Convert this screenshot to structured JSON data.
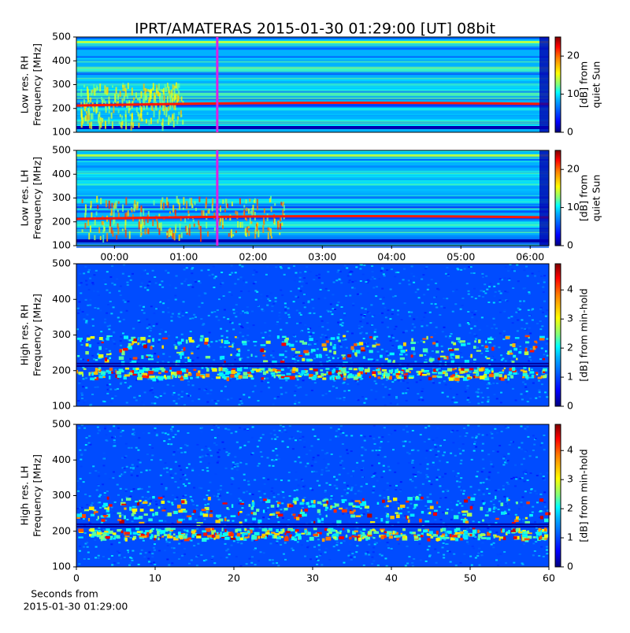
{
  "chart_data": [
    {
      "type": "heatmap",
      "title": "IPRT/AMATERAS 2015-01-30 01:29:00 [UT]   08bit",
      "ylabel": [
        "Low res. RH",
        "Frequency [MHz]"
      ],
      "ylim": [
        100,
        500
      ],
      "yticks": [
        100,
        200,
        300,
        400,
        500
      ],
      "xlim": [
        -0.55,
        6.27
      ],
      "marker_x": 1.483,
      "marker_color": "#e020e0",
      "colorbar_label": [
        "[dB] from",
        "quiet Sun"
      ],
      "clim": [
        0,
        25
      ],
      "cticks": [
        0,
        10,
        20
      ],
      "colormap": "jet"
    },
    {
      "type": "heatmap",
      "ylabel": [
        "Low res. LH",
        "Frequency [MHz]"
      ],
      "ylim": [
        100,
        500
      ],
      "yticks": [
        100,
        200,
        300,
        400,
        500
      ],
      "xlim": [
        -0.55,
        6.27
      ],
      "xticks": [
        {
          "value": 0,
          "label": "00:00"
        },
        {
          "value": 1,
          "label": "01:00"
        },
        {
          "value": 2,
          "label": "02:00"
        },
        {
          "value": 3,
          "label": "03:00"
        },
        {
          "value": 4,
          "label": "04:00"
        },
        {
          "value": 5,
          "label": "05:00"
        },
        {
          "value": 6,
          "label": "06:00"
        }
      ],
      "marker_x": 1.483,
      "marker_color": "#e020e0",
      "colorbar_label": [
        "[dB] from",
        "quiet Sun"
      ],
      "clim": [
        0,
        25
      ],
      "cticks": [
        0,
        10,
        20
      ],
      "colormap": "jet"
    },
    {
      "type": "heatmap",
      "ylabel": [
        "High res. RH",
        "Frequency [MHz]"
      ],
      "ylim": [
        100,
        500
      ],
      "yticks": [
        100,
        200,
        300,
        400,
        500
      ],
      "xlim": [
        0,
        60
      ],
      "colorbar_label": [
        "[dB] from min-hold"
      ],
      "clim": [
        0,
        4.9
      ],
      "cticks": [
        0,
        1,
        2,
        3,
        4
      ],
      "colormap": "jet"
    },
    {
      "type": "heatmap",
      "ylabel": [
        "High res. LH",
        "Frequency [MHz]"
      ],
      "ylim": [
        100,
        500
      ],
      "yticks": [
        100,
        200,
        300,
        400,
        500
      ],
      "xlim": [
        0,
        60
      ],
      "xticks": [
        0,
        10,
        20,
        30,
        40,
        50,
        60
      ],
      "xlabel": [
        "Seconds from",
        "2015-01-30 01:29:00"
      ],
      "colorbar_label": [
        "[dB] from min-hold"
      ],
      "clim": [
        0,
        4.9
      ],
      "cticks": [
        0,
        1,
        2,
        3,
        4
      ],
      "colormap": "jet"
    }
  ]
}
